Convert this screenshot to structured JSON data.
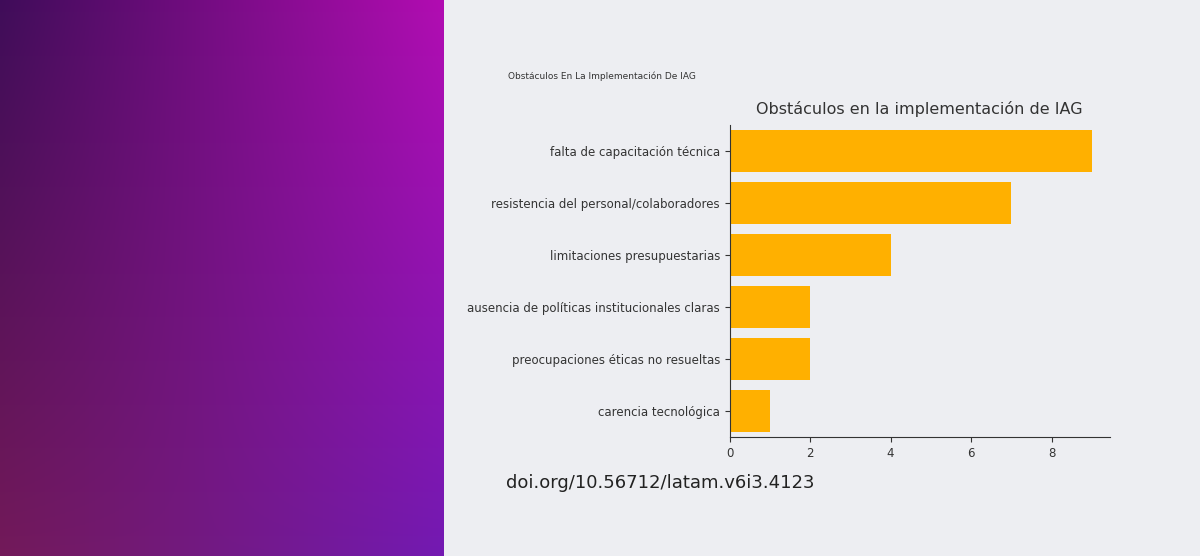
{
  "chart_data": {
    "type": "bar",
    "orientation": "horizontal",
    "title": "Obstáculos en la implementación de IAG",
    "annotations": [
      "Obstáculos En La Implementación De IAG",
      "doi.org/10.56712/latam.v6i3.4123"
    ],
    "categories": [
      "falta de capacitación técnica",
      "resistencia del personal/colaboradores",
      "limitaciones presupuestarias",
      "ausencia de políticas institucionales claras",
      "preocupaciones éticas no resueltas",
      "carencia tecnológica"
    ],
    "values": [
      9,
      7,
      4,
      2,
      2,
      1
    ],
    "color": "#ffb000",
    "xlim": [
      0,
      9.45
    ],
    "xticks": [
      0,
      2,
      4,
      6,
      8
    ],
    "grid": false
  }
}
